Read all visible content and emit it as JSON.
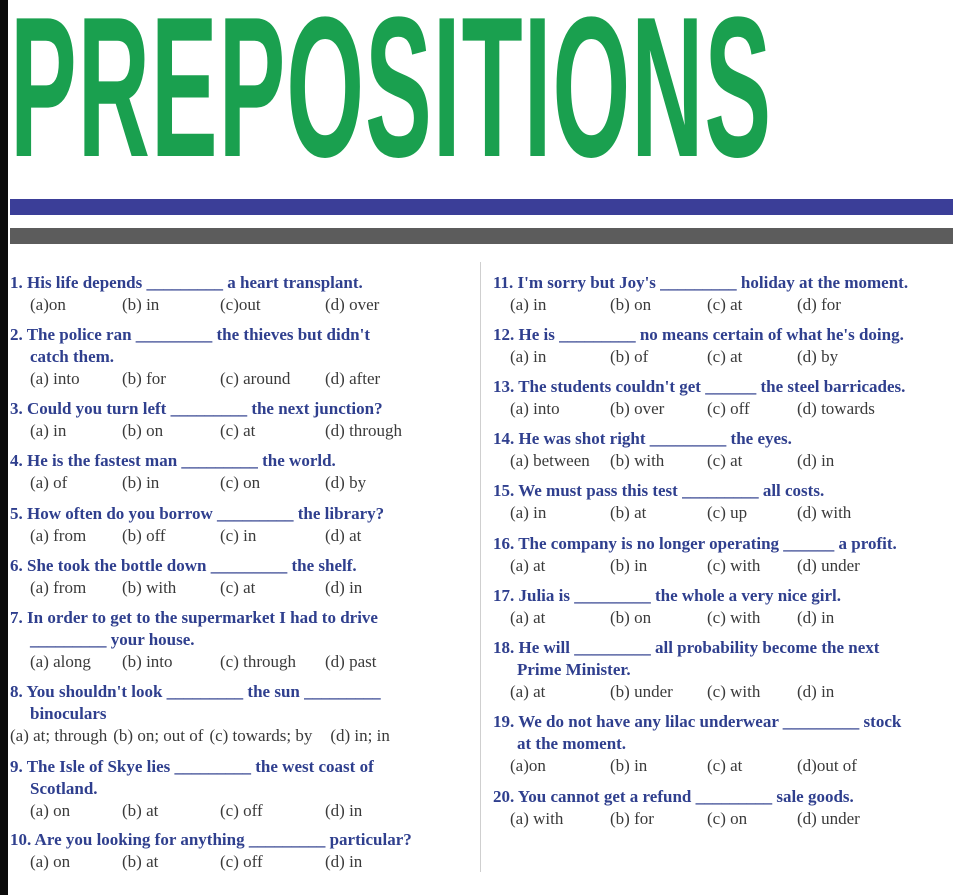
{
  "title": "PREPOSITIONS",
  "colors": {
    "title": "#1aa04f",
    "bar_blue": "#3b3e98",
    "bar_gray": "#5c5c5c",
    "question_text": "#2f3f8e"
  },
  "left": [
    {
      "lines": [
        "1. His life depends _________ a heart transplant."
      ],
      "options": [
        "(a)on",
        "(b) in",
        "(c)out",
        "(d) over"
      ]
    },
    {
      "lines": [
        "2. The police ran _________ the thieves but didn't",
        "catch them."
      ],
      "options": [
        "(a) into",
        "(b) for",
        "(c) around",
        "(d) after"
      ]
    },
    {
      "lines": [
        "3. Could you turn left _________ the next junction?"
      ],
      "options": [
        "(a) in",
        "(b) on",
        "(c) at",
        "(d) through"
      ]
    },
    {
      "lines": [
        "4. He is the fastest man _________ the world."
      ],
      "options": [
        "(a) of",
        "(b) in",
        "(c) on",
        "(d) by"
      ]
    },
    {
      "lines": [
        "5. How often do you borrow _________ the library?"
      ],
      "options": [
        "(a) from",
        "(b) off",
        "(c) in",
        "(d) at"
      ]
    },
    {
      "lines": [
        "6. She took the bottle down _________ the shelf."
      ],
      "options": [
        "(a) from",
        "(b) with",
        "(c) at",
        "(d) in"
      ]
    },
    {
      "lines": [
        "7. In order to get to the supermarket I had to drive",
        "_________ your house."
      ],
      "options": [
        "(a) along",
        "(b) into",
        "(c) through",
        "(d) past"
      ]
    },
    {
      "lines": [
        "8. You shouldn't look _________ the sun _________",
        "binoculars"
      ],
      "options": [
        "(a) at; through",
        "(b) on; out of",
        "(c) towards; by",
        "(d) in; in"
      ]
    },
    {
      "lines": [
        "9. The Isle of Skye lies _________ the west coast of",
        "Scotland."
      ],
      "options": [
        "(a) on",
        "(b) at",
        "(c) off",
        "(d) in"
      ]
    },
    {
      "lines": [
        "10. Are you looking for anything _________ particular?"
      ],
      "options": [
        "(a) on",
        "(b) at",
        "(c) off",
        "(d) in"
      ]
    }
  ],
  "right": [
    {
      "lines": [
        "11. I'm sorry but Joy's _________ holiday at the moment."
      ],
      "options": [
        "(a) in",
        "(b) on",
        "(c) at",
        "(d) for"
      ]
    },
    {
      "lines": [
        "12. He is _________ no means certain of what he's doing."
      ],
      "options": [
        "(a) in",
        "(b) of",
        "(c) at",
        "(d) by"
      ]
    },
    {
      "lines": [
        "13. The students couldn't get ______ the steel barricades."
      ],
      "options": [
        "(a) into",
        "(b) over",
        "(c) off",
        "(d) towards"
      ]
    },
    {
      "lines": [
        "14. He was shot right _________ the eyes."
      ],
      "options": [
        "(a) between",
        "(b) with",
        "(c) at",
        "(d) in"
      ]
    },
    {
      "lines": [
        "15. We must pass this test _________ all costs."
      ],
      "options": [
        "(a) in",
        "(b) at",
        "(c) up",
        "(d) with"
      ]
    },
    {
      "lines": [
        "16. The company is no longer operating ______ a profit."
      ],
      "options": [
        "(a) at",
        "(b) in",
        "(c) with",
        "(d) under"
      ]
    },
    {
      "lines": [
        "17. Julia is _________ the whole a very nice girl."
      ],
      "options": [
        "(a) at",
        "(b) on",
        "(c) with",
        "(d) in"
      ]
    },
    {
      "lines": [
        "18. He will _________ all probability become the next",
        "Prime Minister."
      ],
      "options": [
        "(a) at",
        "(b) under",
        "(c) with",
        "(d) in"
      ]
    },
    {
      "lines": [
        "19. We do not have any lilac underwear _________ stock",
        "at the moment."
      ],
      "options": [
        "(a)on",
        "(b) in",
        "(c) at",
        "(d)out of"
      ]
    },
    {
      "lines": [
        "20. You cannot get a refund _________ sale goods."
      ],
      "options": [
        "(a) with",
        "(b) for",
        "(c) on",
        "(d) under"
      ]
    }
  ]
}
